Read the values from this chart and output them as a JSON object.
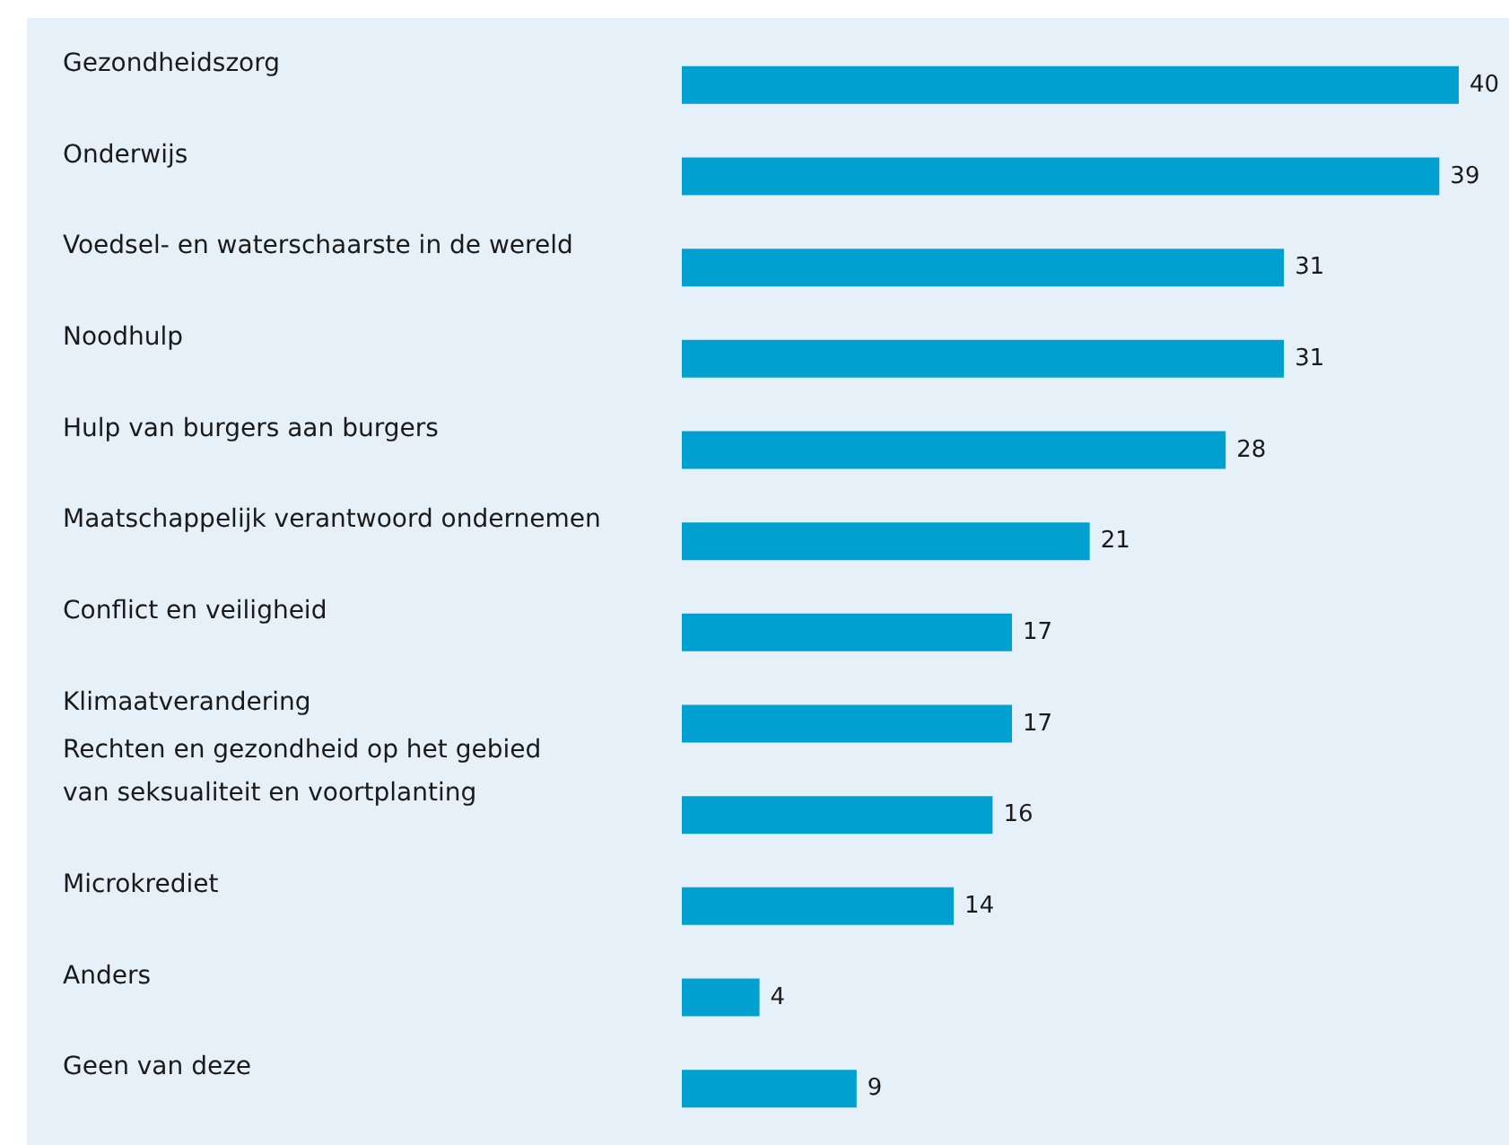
{
  "chart_data": {
    "type": "bar",
    "orientation": "horizontal",
    "categories": [
      "Gezondheidszorg",
      "Onderwijs",
      "Voedsel- en waterschaarste in de wereld",
      "Noodhulp",
      "Hulp van burgers aan burgers",
      "Maatschappelijk verantwoord ondernemen",
      "Conflict en veiligheid",
      "Klimaatverandering",
      "Rechten en gezondheid op het gebied\nvan seksualiteit en voortplanting",
      "Microkrediet",
      "Anders",
      "Geen van deze"
    ],
    "values": [
      40,
      39,
      31,
      31,
      28,
      21,
      17,
      17,
      16,
      14,
      4,
      9
    ],
    "color": "#00a1d1",
    "data_labels": true,
    "tick_labels": "y"
  }
}
